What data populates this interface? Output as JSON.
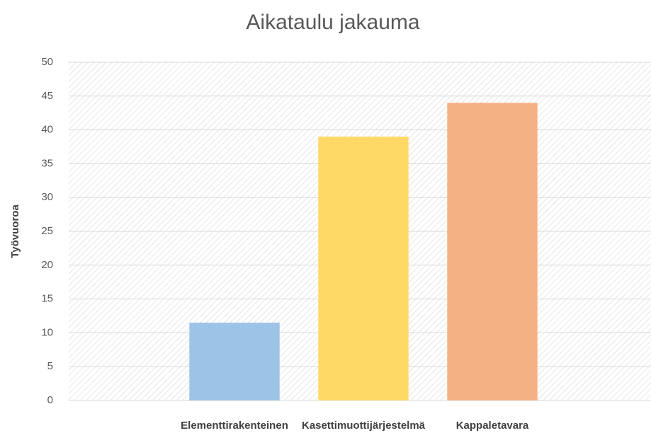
{
  "chart_data": {
    "type": "bar",
    "title": "Aikataulu jakauma",
    "y_label": "Työvuoroa",
    "categories": [
      "Elementtirakenteinen",
      "Kasettimuottijärjestelmä",
      "Kappaletavara"
    ],
    "values": [
      11.5,
      39,
      44
    ],
    "colors": [
      "#9dc3e6",
      "#ffd966",
      "#f4b183"
    ],
    "ylim": [
      0,
      50
    ],
    "yticks": [
      0,
      5,
      10,
      15,
      20,
      25,
      30,
      35,
      40,
      45,
      50
    ],
    "grid": true
  }
}
